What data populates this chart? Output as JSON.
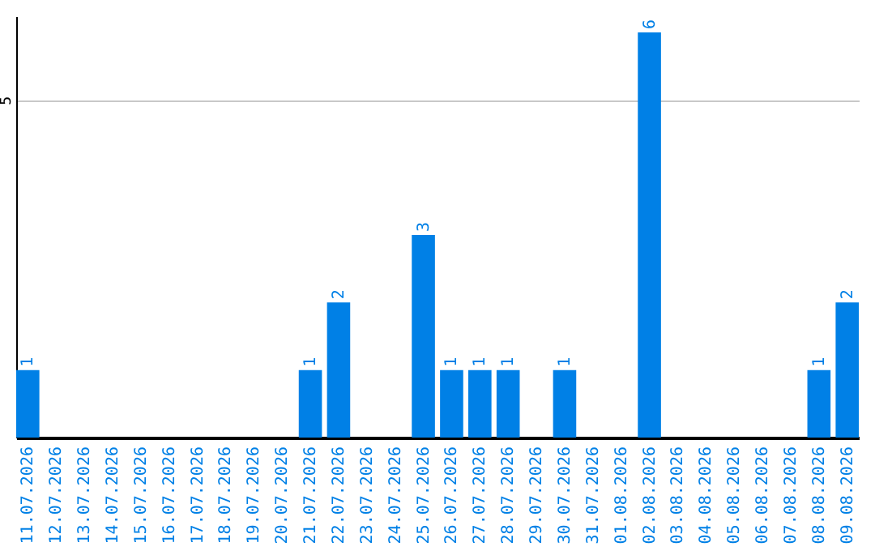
{
  "chart_data": {
    "type": "bar",
    "categories": [
      "11.07.2026",
      "12.07.2026",
      "13.07.2026",
      "14.07.2026",
      "15.07.2026",
      "16.07.2026",
      "17.07.2026",
      "18.07.2026",
      "19.07.2026",
      "20.07.2026",
      "21.07.2026",
      "22.07.2026",
      "23.07.2026",
      "24.07.2026",
      "25.07.2026",
      "26.07.2026",
      "27.07.2026",
      "28.07.2026",
      "29.07.2026",
      "30.07.2026",
      "31.07.2026",
      "01.08.2026",
      "02.08.2026",
      "03.08.2026",
      "04.08.2026",
      "05.08.2026",
      "06.08.2026",
      "07.08.2026",
      "08.08.2026",
      "09.08.2026"
    ],
    "values": [
      1,
      0,
      0,
      0,
      0,
      0,
      0,
      0,
      0,
      0,
      1,
      2,
      0,
      0,
      3,
      1,
      1,
      1,
      0,
      1,
      0,
      0,
      6,
      0,
      0,
      0,
      0,
      0,
      1,
      2
    ],
    "value_labels": [
      "1",
      null,
      null,
      null,
      null,
      null,
      null,
      null,
      null,
      null,
      "1",
      "2",
      null,
      null,
      "3",
      "1",
      "1",
      "1",
      null,
      "1",
      null,
      null,
      "6",
      null,
      null,
      null,
      null,
      null,
      "1",
      "2"
    ],
    "color": "#0080e6",
    "ylim": [
      0,
      6.24
    ],
    "yticks": [
      5
    ],
    "grid": "y"
  }
}
